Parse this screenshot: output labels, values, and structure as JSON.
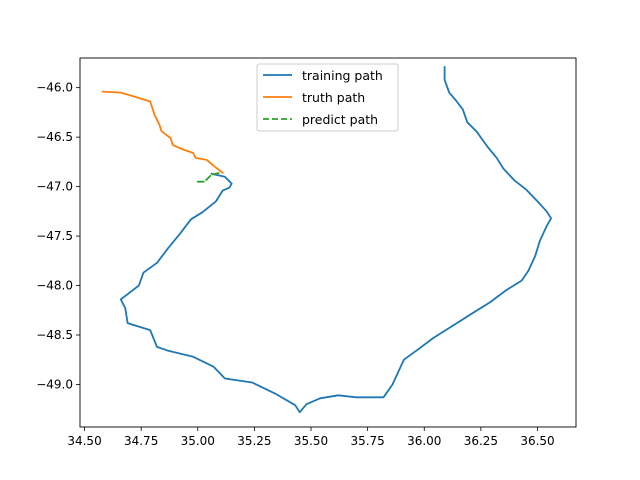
{
  "chart_data": {
    "type": "line",
    "title": "",
    "xlabel": "",
    "ylabel": "",
    "xlim": [
      34.48,
      36.67
    ],
    "ylim": [
      -49.43,
      -45.7
    ],
    "xticks": [
      34.5,
      34.75,
      35.0,
      35.25,
      35.5,
      35.75,
      36.0,
      36.25,
      36.5
    ],
    "xtick_labels": [
      "34.50",
      "34.75",
      "35.00",
      "35.25",
      "35.50",
      "35.75",
      "36.00",
      "36.25",
      "36.50"
    ],
    "yticks": [
      -46.0,
      -46.5,
      -47.0,
      -47.5,
      -48.0,
      -48.5,
      -49.0
    ],
    "ytick_labels": [
      "−46.0",
      "−46.5",
      "−47.0",
      "−47.5",
      "−48.0",
      "−48.5",
      "−49.0"
    ],
    "grid": false,
    "legend_position": "upper center",
    "series": [
      {
        "name": "training path",
        "color": "#1f77b4",
        "style": "solid",
        "points": [
          [
            36.09,
            -45.79
          ],
          [
            36.09,
            -45.92
          ],
          [
            36.11,
            -46.05
          ],
          [
            36.14,
            -46.13
          ],
          [
            36.17,
            -46.22
          ],
          [
            36.19,
            -46.35
          ],
          [
            36.23,
            -46.44
          ],
          [
            36.28,
            -46.6
          ],
          [
            36.32,
            -46.71
          ],
          [
            36.35,
            -46.82
          ],
          [
            36.4,
            -46.94
          ],
          [
            36.45,
            -47.03
          ],
          [
            36.5,
            -47.15
          ],
          [
            36.54,
            -47.25
          ],
          [
            36.56,
            -47.32
          ],
          [
            36.54,
            -47.4
          ],
          [
            36.51,
            -47.55
          ],
          [
            36.49,
            -47.7
          ],
          [
            36.46,
            -47.85
          ],
          [
            36.43,
            -47.95
          ],
          [
            36.36,
            -48.05
          ],
          [
            36.29,
            -48.17
          ],
          [
            36.22,
            -48.27
          ],
          [
            36.13,
            -48.4
          ],
          [
            36.04,
            -48.53
          ],
          [
            35.97,
            -48.65
          ],
          [
            35.91,
            -48.75
          ],
          [
            35.89,
            -48.85
          ],
          [
            35.86,
            -49.0
          ],
          [
            35.82,
            -49.13
          ],
          [
            35.7,
            -49.13
          ],
          [
            35.62,
            -49.11
          ],
          [
            35.54,
            -49.14
          ],
          [
            35.48,
            -49.2
          ],
          [
            35.45,
            -49.28
          ],
          [
            35.43,
            -49.21
          ],
          [
            35.34,
            -49.09
          ],
          [
            35.24,
            -48.98
          ],
          [
            35.12,
            -48.94
          ],
          [
            35.07,
            -48.82
          ],
          [
            34.98,
            -48.72
          ],
          [
            34.87,
            -48.66
          ],
          [
            34.82,
            -48.62
          ],
          [
            34.79,
            -48.45
          ],
          [
            34.69,
            -48.38
          ],
          [
            34.68,
            -48.23
          ],
          [
            34.66,
            -48.14
          ],
          [
            34.74,
            -48.0
          ],
          [
            34.76,
            -47.87
          ],
          [
            34.82,
            -47.77
          ],
          [
            34.87,
            -47.62
          ],
          [
            34.92,
            -47.48
          ],
          [
            34.97,
            -47.33
          ],
          [
            35.02,
            -47.26
          ],
          [
            35.08,
            -47.15
          ],
          [
            35.11,
            -47.04
          ],
          [
            35.14,
            -47.01
          ],
          [
            35.15,
            -46.97
          ],
          [
            35.12,
            -46.9
          ],
          [
            35.06,
            -46.87
          ]
        ]
      },
      {
        "name": "truth path",
        "color": "#ff7f0e",
        "style": "solid",
        "points": [
          [
            34.58,
            -46.04
          ],
          [
            34.66,
            -46.05
          ],
          [
            34.72,
            -46.09
          ],
          [
            34.79,
            -46.14
          ],
          [
            34.81,
            -46.28
          ],
          [
            34.83,
            -46.37
          ],
          [
            34.84,
            -46.44
          ],
          [
            34.88,
            -46.51
          ],
          [
            34.89,
            -46.58
          ],
          [
            34.93,
            -46.62
          ],
          [
            34.98,
            -46.66
          ],
          [
            34.99,
            -46.71
          ],
          [
            35.04,
            -46.73
          ],
          [
            35.07,
            -46.79
          ],
          [
            35.11,
            -46.86
          ]
        ]
      },
      {
        "name": "predict path",
        "color": "#2ca02c",
        "style": "dashed",
        "points": [
          [
            35.0,
            -46.95
          ],
          [
            35.03,
            -46.95
          ],
          [
            35.06,
            -46.88
          ],
          [
            35.1,
            -46.86
          ]
        ]
      }
    ]
  }
}
